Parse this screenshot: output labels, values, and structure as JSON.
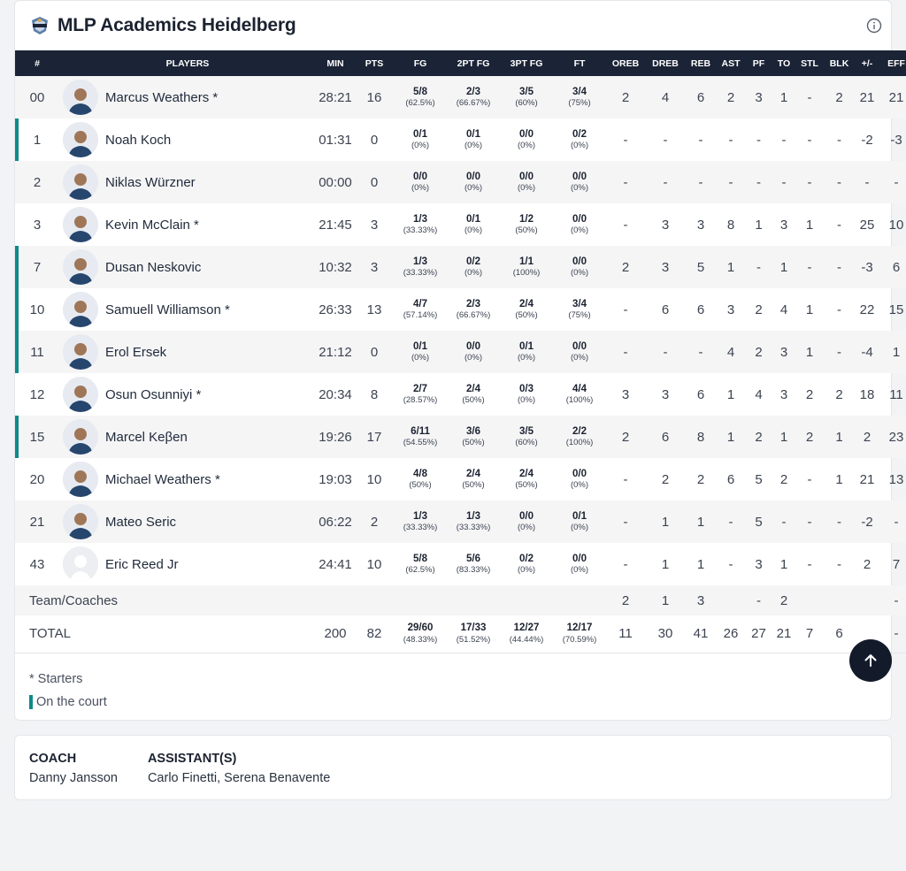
{
  "team": {
    "name": "MLP Academics Heidelberg"
  },
  "columns": [
    "#",
    "PLAYERS",
    "MIN",
    "PTS",
    "FG",
    "2PT FG",
    "3PT FG",
    "FT",
    "OREB",
    "DREB",
    "REB",
    "AST",
    "PF",
    "TO",
    "STL",
    "BLK",
    "+/-",
    "EFF"
  ],
  "players": [
    {
      "num": "00",
      "name": "Marcus Weathers *",
      "min": "28:21",
      "pts": "16",
      "fg": [
        "5/8",
        "(62.5%)"
      ],
      "fg2": [
        "2/3",
        "(66.67%)"
      ],
      "fg3": [
        "3/5",
        "(60%)"
      ],
      "ft": [
        "3/4",
        "(75%)"
      ],
      "oreb": "2",
      "dreb": "4",
      "reb": "6",
      "ast": "2",
      "pf": "3",
      "to": "1",
      "stl": "-",
      "blk": "2",
      "pm": "21",
      "eff": "21",
      "oncourt": false,
      "photo": true
    },
    {
      "num": "1",
      "name": "Noah Koch",
      "min": "01:31",
      "pts": "0",
      "fg": [
        "0/1",
        "(0%)"
      ],
      "fg2": [
        "0/1",
        "(0%)"
      ],
      "fg3": [
        "0/0",
        "(0%)"
      ],
      "ft": [
        "0/2",
        "(0%)"
      ],
      "oreb": "-",
      "dreb": "-",
      "reb": "-",
      "ast": "-",
      "pf": "-",
      "to": "-",
      "stl": "-",
      "blk": "-",
      "pm": "-2",
      "eff": "-3",
      "oncourt": true,
      "photo": true
    },
    {
      "num": "2",
      "name": "Niklas Würzner",
      "min": "00:00",
      "pts": "0",
      "fg": [
        "0/0",
        "(0%)"
      ],
      "fg2": [
        "0/0",
        "(0%)"
      ],
      "fg3": [
        "0/0",
        "(0%)"
      ],
      "ft": [
        "0/0",
        "(0%)"
      ],
      "oreb": "-",
      "dreb": "-",
      "reb": "-",
      "ast": "-",
      "pf": "-",
      "to": "-",
      "stl": "-",
      "blk": "-",
      "pm": "-",
      "eff": "-",
      "oncourt": false,
      "photo": true
    },
    {
      "num": "3",
      "name": "Kevin McClain *",
      "min": "21:45",
      "pts": "3",
      "fg": [
        "1/3",
        "(33.33%)"
      ],
      "fg2": [
        "0/1",
        "(0%)"
      ],
      "fg3": [
        "1/2",
        "(50%)"
      ],
      "ft": [
        "0/0",
        "(0%)"
      ],
      "oreb": "-",
      "dreb": "3",
      "reb": "3",
      "ast": "8",
      "pf": "1",
      "to": "3",
      "stl": "1",
      "blk": "-",
      "pm": "25",
      "eff": "10",
      "oncourt": false,
      "photo": true
    },
    {
      "num": "7",
      "name": "Dusan Neskovic",
      "min": "10:32",
      "pts": "3",
      "fg": [
        "1/3",
        "(33.33%)"
      ],
      "fg2": [
        "0/2",
        "(0%)"
      ],
      "fg3": [
        "1/1",
        "(100%)"
      ],
      "ft": [
        "0/0",
        "(0%)"
      ],
      "oreb": "2",
      "dreb": "3",
      "reb": "5",
      "ast": "1",
      "pf": "-",
      "to": "1",
      "stl": "-",
      "blk": "-",
      "pm": "-3",
      "eff": "6",
      "oncourt": true,
      "photo": true
    },
    {
      "num": "10",
      "name": "Samuell Williamson *",
      "min": "26:33",
      "pts": "13",
      "fg": [
        "4/7",
        "(57.14%)"
      ],
      "fg2": [
        "2/3",
        "(66.67%)"
      ],
      "fg3": [
        "2/4",
        "(50%)"
      ],
      "ft": [
        "3/4",
        "(75%)"
      ],
      "oreb": "-",
      "dreb": "6",
      "reb": "6",
      "ast": "3",
      "pf": "2",
      "to": "4",
      "stl": "1",
      "blk": "-",
      "pm": "22",
      "eff": "15",
      "oncourt": true,
      "photo": true
    },
    {
      "num": "11",
      "name": "Erol Ersek",
      "min": "21:12",
      "pts": "0",
      "fg": [
        "0/1",
        "(0%)"
      ],
      "fg2": [
        "0/0",
        "(0%)"
      ],
      "fg3": [
        "0/1",
        "(0%)"
      ],
      "ft": [
        "0/0",
        "(0%)"
      ],
      "oreb": "-",
      "dreb": "-",
      "reb": "-",
      "ast": "4",
      "pf": "2",
      "to": "3",
      "stl": "1",
      "blk": "-",
      "pm": "-4",
      "eff": "1",
      "oncourt": true,
      "photo": true
    },
    {
      "num": "12",
      "name": "Osun Osunniyi *",
      "min": "20:34",
      "pts": "8",
      "fg": [
        "2/7",
        "(28.57%)"
      ],
      "fg2": [
        "2/4",
        "(50%)"
      ],
      "fg3": [
        "0/3",
        "(0%)"
      ],
      "ft": [
        "4/4",
        "(100%)"
      ],
      "oreb": "3",
      "dreb": "3",
      "reb": "6",
      "ast": "1",
      "pf": "4",
      "to": "3",
      "stl": "2",
      "blk": "2",
      "pm": "18",
      "eff": "11",
      "oncourt": false,
      "photo": true
    },
    {
      "num": "15",
      "name": "Marcel Keβen",
      "min": "19:26",
      "pts": "17",
      "fg": [
        "6/11",
        "(54.55%)"
      ],
      "fg2": [
        "3/6",
        "(50%)"
      ],
      "fg3": [
        "3/5",
        "(60%)"
      ],
      "ft": [
        "2/2",
        "(100%)"
      ],
      "oreb": "2",
      "dreb": "6",
      "reb": "8",
      "ast": "1",
      "pf": "2",
      "to": "1",
      "stl": "2",
      "blk": "1",
      "pm": "2",
      "eff": "23",
      "oncourt": true,
      "photo": true
    },
    {
      "num": "20",
      "name": "Michael Weathers *",
      "min": "19:03",
      "pts": "10",
      "fg": [
        "4/8",
        "(50%)"
      ],
      "fg2": [
        "2/4",
        "(50%)"
      ],
      "fg3": [
        "2/4",
        "(50%)"
      ],
      "ft": [
        "0/0",
        "(0%)"
      ],
      "oreb": "-",
      "dreb": "2",
      "reb": "2",
      "ast": "6",
      "pf": "5",
      "to": "2",
      "stl": "-",
      "blk": "1",
      "pm": "21",
      "eff": "13",
      "oncourt": false,
      "photo": true
    },
    {
      "num": "21",
      "name": "Mateo Seric",
      "min": "06:22",
      "pts": "2",
      "fg": [
        "1/3",
        "(33.33%)"
      ],
      "fg2": [
        "1/3",
        "(33.33%)"
      ],
      "fg3": [
        "0/0",
        "(0%)"
      ],
      "ft": [
        "0/1",
        "(0%)"
      ],
      "oreb": "-",
      "dreb": "1",
      "reb": "1",
      "ast": "-",
      "pf": "5",
      "to": "-",
      "stl": "-",
      "blk": "-",
      "pm": "-2",
      "eff": "-",
      "oncourt": false,
      "photo": true
    },
    {
      "num": "43",
      "name": "Eric Reed Jr",
      "min": "24:41",
      "pts": "10",
      "fg": [
        "5/8",
        "(62.5%)"
      ],
      "fg2": [
        "5/6",
        "(83.33%)"
      ],
      "fg3": [
        "0/2",
        "(0%)"
      ],
      "ft": [
        "0/0",
        "(0%)"
      ],
      "oreb": "-",
      "dreb": "1",
      "reb": "1",
      "ast": "-",
      "pf": "3",
      "to": "1",
      "stl": "-",
      "blk": "-",
      "pm": "2",
      "eff": "7",
      "oncourt": false,
      "photo": false
    }
  ],
  "team_row": {
    "label": "Team/Coaches",
    "oreb": "2",
    "dreb": "1",
    "reb": "3",
    "ast": "",
    "pf": "-",
    "to": "2",
    "stl": "",
    "blk": "",
    "pm": "",
    "eff": "-"
  },
  "total_row": {
    "label": "TOTAL",
    "min": "200",
    "pts": "82",
    "fg": [
      "29/60",
      "(48.33%)"
    ],
    "fg2": [
      "17/33",
      "(51.52%)"
    ],
    "fg3": [
      "12/27",
      "(44.44%)"
    ],
    "ft": [
      "12/17",
      "(70.59%)"
    ],
    "oreb": "11",
    "dreb": "30",
    "reb": "41",
    "ast": "26",
    "pf": "27",
    "to": "21",
    "stl": "7",
    "blk": "6",
    "pm": "",
    "eff": "-"
  },
  "legend": {
    "starters": "* Starters",
    "on_court": "On the court"
  },
  "coach": {
    "coach_label": "COACH",
    "coach_name": "Danny Jansson",
    "assistant_label": "ASSISTANT(S)",
    "assistant_names": "Carlo Finetti, Serena Benavente"
  },
  "colors": {
    "header_bg": "#1b2436",
    "on_court": "#0e8a8a",
    "scroll_btn": "#131b2b"
  },
  "icons": {
    "info": "info-icon",
    "scroll_top": "arrow-up-icon",
    "logo": "team-logo"
  }
}
